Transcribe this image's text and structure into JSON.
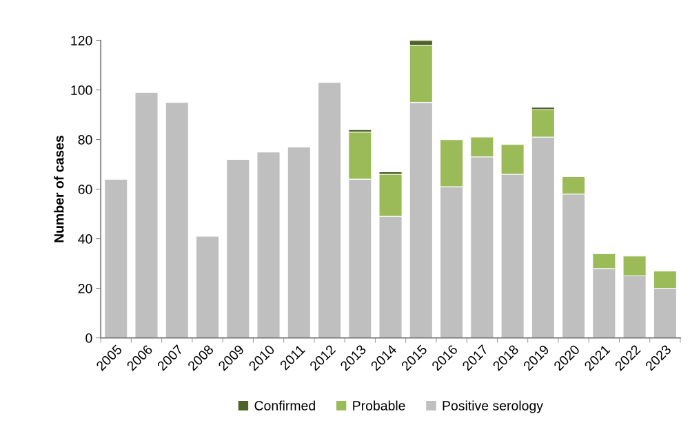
{
  "chart_data": {
    "type": "bar",
    "stacked": true,
    "ylabel": "Number of cases",
    "categories": [
      "2005",
      "2006",
      "2007",
      "2008",
      "2009",
      "2010",
      "2011",
      "2012",
      "2013",
      "2014",
      "2015",
      "2016",
      "2017",
      "2018",
      "2019",
      "2020",
      "2021",
      "2022",
      "2023"
    ],
    "series": [
      {
        "name": "Positive serology",
        "color": "#bfbfbf",
        "values": [
          64,
          99,
          95,
          41,
          72,
          75,
          77,
          103,
          64,
          49,
          95,
          61,
          73,
          66,
          81,
          58,
          28,
          25,
          20
        ]
      },
      {
        "name": "Probable",
        "color": "#9bbb59",
        "values": [
          null,
          null,
          null,
          null,
          null,
          null,
          null,
          null,
          19,
          17,
          23,
          19,
          8,
          12,
          11,
          7,
          6,
          8,
          7
        ]
      },
      {
        "name": "Confirmed",
        "color": "#4f6228",
        "values": [
          null,
          null,
          null,
          null,
          null,
          null,
          null,
          null,
          1,
          1,
          2,
          null,
          null,
          null,
          1,
          null,
          null,
          null,
          null
        ]
      }
    ],
    "ylim": [
      0,
      120
    ],
    "yticks": [
      0,
      20,
      40,
      60,
      80,
      100,
      120
    ],
    "grid": false,
    "legend": "bottom"
  }
}
